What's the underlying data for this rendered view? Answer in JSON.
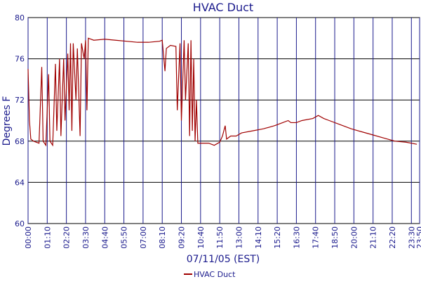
{
  "chart_data": {
    "type": "line",
    "title": "HVAC Duct",
    "ylabel": "Degrees F",
    "xlabel": "07/11/05 (EST)",
    "ylim": [
      60,
      80
    ],
    "yticks": [
      60,
      64,
      68,
      72,
      76,
      80
    ],
    "xlim": [
      0,
      1430
    ],
    "xticks": [
      {
        "value": 0,
        "label": "00:00"
      },
      {
        "value": 70,
        "label": "01:10"
      },
      {
        "value": 140,
        "label": "02:20"
      },
      {
        "value": 210,
        "label": "03:30"
      },
      {
        "value": 280,
        "label": "04:40"
      },
      {
        "value": 350,
        "label": "05:50"
      },
      {
        "value": 420,
        "label": "07:00"
      },
      {
        "value": 490,
        "label": "08:10"
      },
      {
        "value": 560,
        "label": "09:20"
      },
      {
        "value": 630,
        "label": "10:40"
      },
      {
        "value": 700,
        "label": "11:50"
      },
      {
        "value": 770,
        "label": "13:00"
      },
      {
        "value": 840,
        "label": "14:10"
      },
      {
        "value": 910,
        "label": "15:20"
      },
      {
        "value": 980,
        "label": "16:30"
      },
      {
        "value": 1050,
        "label": "17:40"
      },
      {
        "value": 1120,
        "label": "18:50"
      },
      {
        "value": 1190,
        "label": "20:00"
      },
      {
        "value": 1260,
        "label": "21:10"
      },
      {
        "value": 1330,
        "label": "22:20"
      },
      {
        "value": 1400,
        "label": "23:30"
      },
      {
        "value": 1430,
        "label": "23:50"
      }
    ],
    "grid": true,
    "legend": "bottom",
    "x": [
      0,
      5,
      10,
      20,
      40,
      50,
      55,
      65,
      75,
      80,
      90,
      100,
      105,
      115,
      120,
      130,
      135,
      145,
      150,
      155,
      160,
      165,
      175,
      180,
      190,
      195,
      205,
      210,
      215,
      220,
      240,
      280,
      320,
      360,
      400,
      440,
      480,
      490,
      500,
      505,
      520,
      540,
      545,
      555,
      560,
      570,
      575,
      585,
      590,
      595,
      600,
      605,
      610,
      615,
      620,
      640,
      660,
      680,
      700,
      710,
      720,
      725,
      740,
      760,
      780,
      820,
      860,
      900,
      930,
      950,
      960,
      980,
      1000,
      1040,
      1060,
      1080,
      1100,
      1140,
      1180,
      1220,
      1260,
      1300,
      1340,
      1380,
      1420
    ],
    "series": [
      {
        "name": "HVAC Duct",
        "color": "#a00000",
        "values": [
          75,
          70,
          68.2,
          68,
          67.8,
          75.2,
          68,
          67.6,
          74.5,
          68,
          67.6,
          75.5,
          69,
          76,
          68.5,
          76,
          70,
          76.5,
          71,
          77.5,
          69,
          77.5,
          72,
          77,
          68.5,
          77.5,
          76,
          77.8,
          71,
          78,
          77.8,
          77.9,
          77.8,
          77.7,
          77.6,
          77.6,
          77.7,
          77.8,
          74.8,
          77,
          77.3,
          77.2,
          71,
          77.5,
          70,
          77.8,
          72,
          77.5,
          68.5,
          77.8,
          69,
          76,
          68,
          72,
          67.8,
          67.8,
          67.8,
          67.6,
          67.9,
          68.5,
          69.5,
          68.2,
          68.5,
          68.5,
          68.8,
          69,
          69.2,
          69.5,
          69.8,
          70,
          69.8,
          69.8,
          70,
          70.2,
          70.5,
          70.2,
          70,
          69.6,
          69.2,
          68.9,
          68.6,
          68.3,
          68,
          67.9,
          67.7
        ]
      }
    ]
  }
}
